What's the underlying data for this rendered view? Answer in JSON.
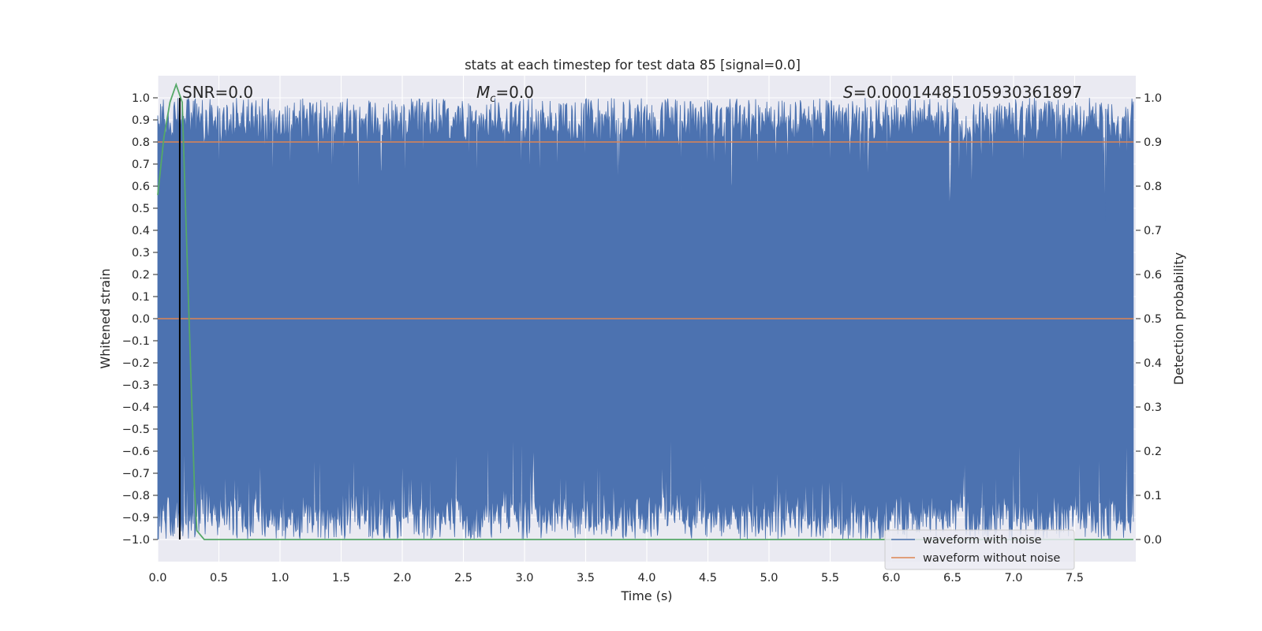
{
  "chart_data": {
    "type": "line",
    "title": "stats at each timestep for test data 85 [signal=0.0]",
    "xlabel": "Time (s)",
    "ylabel": "Whitened strain",
    "y2label": "Detection probability",
    "xlim": [
      0.0,
      8.0
    ],
    "ylim": [
      -1.1,
      1.1
    ],
    "y2lim": [
      -0.05,
      1.05
    ],
    "x_ticks": [
      "0.0",
      "0.5",
      "1.0",
      "1.5",
      "2.0",
      "2.5",
      "3.0",
      "3.5",
      "4.0",
      "4.5",
      "5.0",
      "5.5",
      "6.0",
      "6.5",
      "7.0",
      "7.5"
    ],
    "y_ticks": [
      "1.0",
      "0.9",
      "0.8",
      "0.7",
      "0.6",
      "0.5",
      "0.4",
      "0.3",
      "0.2",
      "0.1",
      "0.0",
      "−0.1",
      "−0.2",
      "−0.3",
      "−0.4",
      "−0.5",
      "−0.6",
      "−0.7",
      "−0.8",
      "−0.9",
      "−1.0"
    ],
    "y2_ticks": [
      "1.0",
      "0.9",
      "0.8",
      "0.7",
      "0.6",
      "0.5",
      "0.4",
      "0.3",
      "0.2",
      "0.1",
      "0.0"
    ],
    "grid": true,
    "background": "#EAEAF2",
    "annotations": {
      "snr": "SNR=0.0",
      "mc_symbol": "M",
      "mc_sub": "c",
      "mc_value": "=0.0",
      "s_symbol": "S",
      "s_value": "=0.00014485105930361897"
    },
    "vertical_marker_x": 0.18,
    "threshold_line": {
      "y2": 0.9,
      "color": "#DD8452"
    },
    "legend": {
      "position": "lower-right",
      "entries": [
        {
          "label": "waveform with noise",
          "color": "#4C72B0"
        },
        {
          "label": "waveform without noise",
          "color": "#DD8452"
        }
      ]
    },
    "series": [
      {
        "name": "waveform with noise",
        "color": "#4C72B0",
        "envelope": {
          "top_typical": 0.9,
          "bottom_typical": -0.9,
          "min": -1.0,
          "max": 1.0
        }
      },
      {
        "name": "waveform without noise",
        "color": "#DD8452",
        "x": [
          0.0,
          7.98
        ],
        "y": [
          0.0,
          0.0
        ]
      },
      {
        "color": "#55A868",
        "axis": "right",
        "x": [
          0.0,
          0.05,
          0.1,
          0.15,
          0.2,
          0.25,
          0.3,
          0.32,
          0.38,
          1.0,
          2.0,
          3.0,
          4.0,
          5.0,
          6.0,
          7.0,
          7.98
        ],
        "y": [
          0.78,
          0.91,
          0.99,
          1.03,
          0.99,
          0.55,
          0.12,
          0.02,
          0.0,
          0.0,
          0.0,
          0.0,
          0.0,
          0.0,
          0.0,
          0.0,
          0.0
        ]
      }
    ]
  }
}
